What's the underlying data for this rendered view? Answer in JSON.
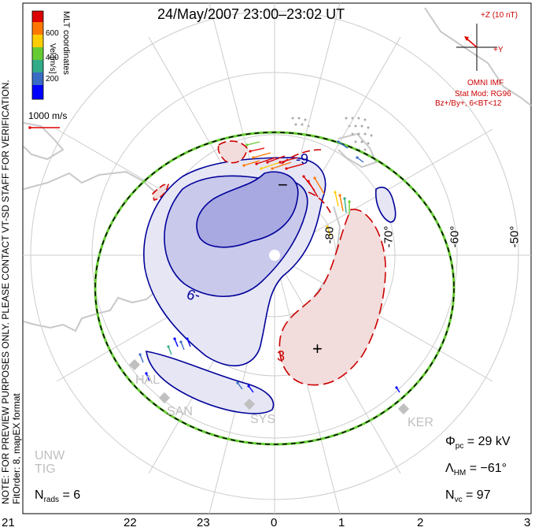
{
  "title": "24/May/2007 23:00–23:02 UT",
  "note_line1": "NOTE: FOR PREVIEW PURPOSES ONLY. PLEASE CONTACT VT-SD STAFF FOR VERIFICATION.",
  "note_line2": "FitOrder: 8, mapEX format",
  "colorbar": {
    "coord_label": "MLT coordinates",
    "unit_label": "Vel [m/s]",
    "ticks": [
      "600",
      "400",
      "200"
    ],
    "colors": [
      "#0000ff",
      "#3a6bc4",
      "#33aa88",
      "#66cc33",
      "#ffcc00",
      "#ff7700",
      "#dd0000"
    ]
  },
  "scale_vector_label": "1000 m/s",
  "imf": {
    "z_label": "+Z (10 nT)",
    "y_label": "+Y",
    "source_label": "OMNI IMF",
    "model_line1": "Stat Mod: RG96",
    "model_line2": "Bz+/By+, 6<BT<12"
  },
  "contour_labels": [
    "-9",
    "-9",
    "3"
  ],
  "potential_marks": [
    "−",
    "+"
  ],
  "lat_labels": [
    "-80",
    "-70°",
    "-60°",
    "-50°"
  ],
  "stations": [
    "HAL",
    "SAN",
    "SYS",
    "KER",
    "UNW",
    "TIG"
  ],
  "stats": {
    "phi_sym": "Φ",
    "phi_sub": "pc",
    "phi_val": "= 29 kV",
    "lam_sym": "Λ",
    "lam_sub": "HM",
    "lam_val": "= −61°",
    "nvc_sym": "N",
    "nvc_sub": "vc",
    "nvc_val": "= 97",
    "nrads_sym": "N",
    "nrads_sub": "rads",
    "nrads_val": "= 6"
  },
  "mlt_ticks": [
    "21",
    "22",
    "23",
    "0",
    "1",
    "2",
    "3"
  ],
  "colors": {
    "negative_cell": "#0000aa",
    "positive_cell": "#cc0000",
    "coast": "#c8c8c8",
    "boundary_green": "#66cc33"
  }
}
